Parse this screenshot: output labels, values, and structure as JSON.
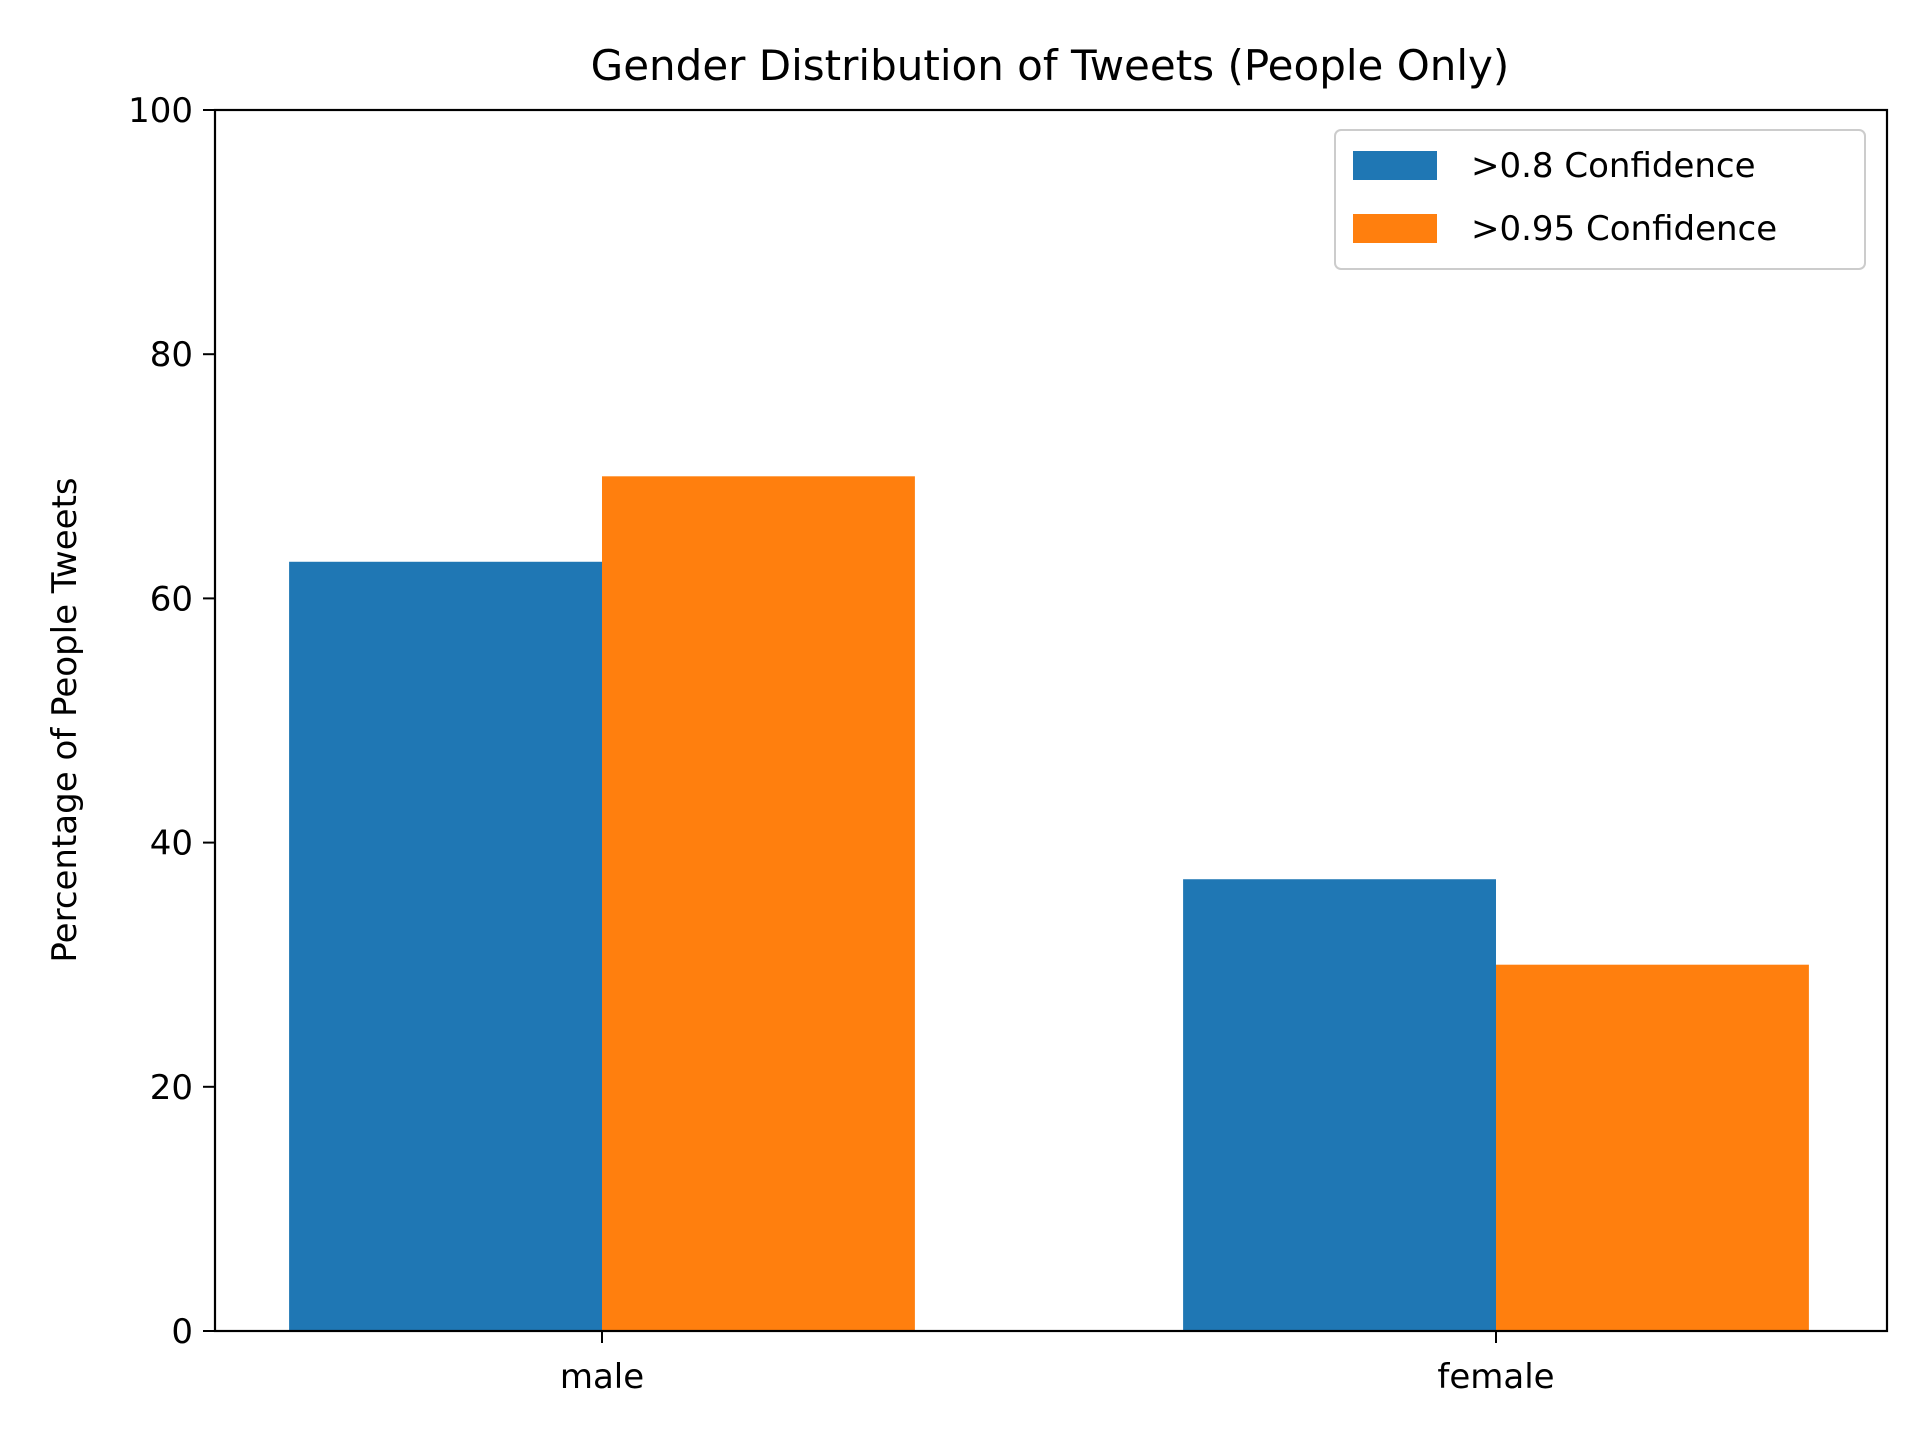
{
  "chart_data": {
    "type": "bar",
    "title": "Gender Distribution of Tweets (People Only)",
    "xlabel": "",
    "ylabel": "Percentage of People Tweets",
    "categories": [
      "male",
      "female"
    ],
    "series": [
      {
        "name": ">0.8 Confidence",
        "color": "#1f77b4",
        "values": [
          63,
          37
        ]
      },
      {
        "name": ">0.95 Confidence",
        "color": "#ff7f0e",
        "values": [
          70,
          30
        ]
      }
    ],
    "ylim": [
      0,
      100
    ],
    "yticks": [
      0,
      20,
      40,
      60,
      80,
      100
    ],
    "grid": false,
    "legend_position": "top-right"
  }
}
